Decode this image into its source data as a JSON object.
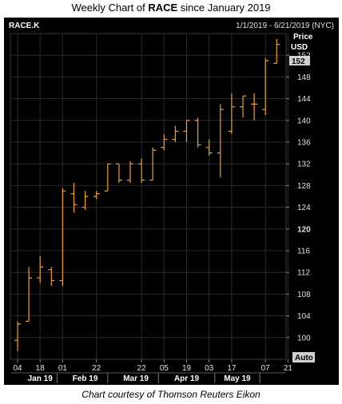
{
  "header": {
    "title_prefix": "Weekly Chart of ",
    "title_ticker": "RACE",
    "title_suffix": " since January 2019"
  },
  "caption": "Chart courtesy of Thomson Reuters Eikon",
  "colors": {
    "background": "#000000",
    "bar": "#f0a030",
    "axis_text": "#e0e0e0",
    "grid": "#2a2a2a",
    "label_box": "#d0d0d0"
  },
  "chart_data": {
    "type": "ohlc",
    "symbol": "RACE.K",
    "date_range": "1/1/2019 - 6/21/2019 (NYC)",
    "price_label": "Price",
    "currency": "USD",
    "last_price_label": "152",
    "auto_label": "Auto",
    "ylim": [
      96,
      156
    ],
    "y_ticks": [
      100,
      104,
      108,
      112,
      116,
      120,
      124,
      128,
      132,
      136,
      140,
      144,
      148,
      152
    ],
    "y_tick_bold": 120,
    "x_tick_labels": [
      "04",
      "18",
      "01",
      "22",
      "22",
      "05",
      "19",
      "03",
      "17",
      "07",
      "21"
    ],
    "x_tick_weeks": [
      0,
      2,
      4,
      7,
      11,
      13,
      15,
      17,
      19,
      22,
      24
    ],
    "month_labels": [
      "Jan 19",
      "Feb 19",
      "Mar 19",
      "Apr 19",
      "May 19"
    ],
    "month_label_weeks": [
      2,
      6,
      10.5,
      15,
      19.5
    ],
    "month_separator_weeks": [
      3.5,
      8,
      12.5,
      17.5,
      21.5
    ],
    "x_label_max_week": 24,
    "bars": [
      {
        "date": "2019-01-04",
        "open": 99.5,
        "high": 103,
        "low": 97.5,
        "close": 102.5
      },
      {
        "date": "2019-01-11",
        "open": 103,
        "high": 113,
        "low": 103,
        "close": 111
      },
      {
        "date": "2019-01-18",
        "open": 111,
        "high": 115,
        "low": 110,
        "close": 113
      },
      {
        "date": "2019-01-25",
        "open": 112.5,
        "high": 113,
        "low": 109.5,
        "close": 110.5
      },
      {
        "date": "2019-02-01",
        "open": 110.5,
        "high": 127.5,
        "low": 109.5,
        "close": 127
      },
      {
        "date": "2019-02-08",
        "open": 126.5,
        "high": 128.5,
        "low": 123,
        "close": 124.5
      },
      {
        "date": "2019-02-15",
        "open": 124,
        "high": 127,
        "low": 123.5,
        "close": 126
      },
      {
        "date": "2019-02-22",
        "open": 126,
        "high": 127,
        "low": 125.5,
        "close": 126.5
      },
      {
        "date": "2019-03-01",
        "open": 127,
        "high": 132,
        "low": 127,
        "close": 132
      },
      {
        "date": "2019-03-08",
        "open": 132,
        "high": 132,
        "low": 128.5,
        "close": 129
      },
      {
        "date": "2019-03-15",
        "open": 129,
        "high": 132.5,
        "low": 128.5,
        "close": 132
      },
      {
        "date": "2019-03-22",
        "open": 132,
        "high": 133,
        "low": 128.5,
        "close": 129
      },
      {
        "date": "2019-03-29",
        "open": 129,
        "high": 135,
        "low": 129,
        "close": 134.5
      },
      {
        "date": "2019-04-05",
        "open": 135,
        "high": 137.5,
        "low": 134.5,
        "close": 136.5
      },
      {
        "date": "2019-04-12",
        "open": 136.5,
        "high": 139,
        "low": 136,
        "close": 138
      },
      {
        "date": "2019-04-19",
        "open": 138,
        "high": 140,
        "low": 136,
        "close": 140
      },
      {
        "date": "2019-04-26",
        "open": 140,
        "high": 140.5,
        "low": 135,
        "close": 135.5
      },
      {
        "date": "2019-05-03",
        "open": 135,
        "high": 136.5,
        "low": 133.5,
        "close": 134
      },
      {
        "date": "2019-05-10",
        "open": 134,
        "high": 143,
        "low": 129.5,
        "close": 142
      },
      {
        "date": "2019-05-17",
        "open": 138,
        "high": 145,
        "low": 137.5,
        "close": 142.5
      },
      {
        "date": "2019-05-24",
        "open": 142.5,
        "high": 144.5,
        "low": 140.5,
        "close": 144.5
      },
      {
        "date": "2019-05-31",
        "open": 143,
        "high": 145,
        "low": 140,
        "close": 143
      },
      {
        "date": "2019-06-07",
        "open": 142,
        "high": 151.5,
        "low": 141,
        "close": 151
      },
      {
        "date": "2019-06-14",
        "open": 150.5,
        "high": 155,
        "low": 150.5,
        "close": 154
      }
    ]
  }
}
